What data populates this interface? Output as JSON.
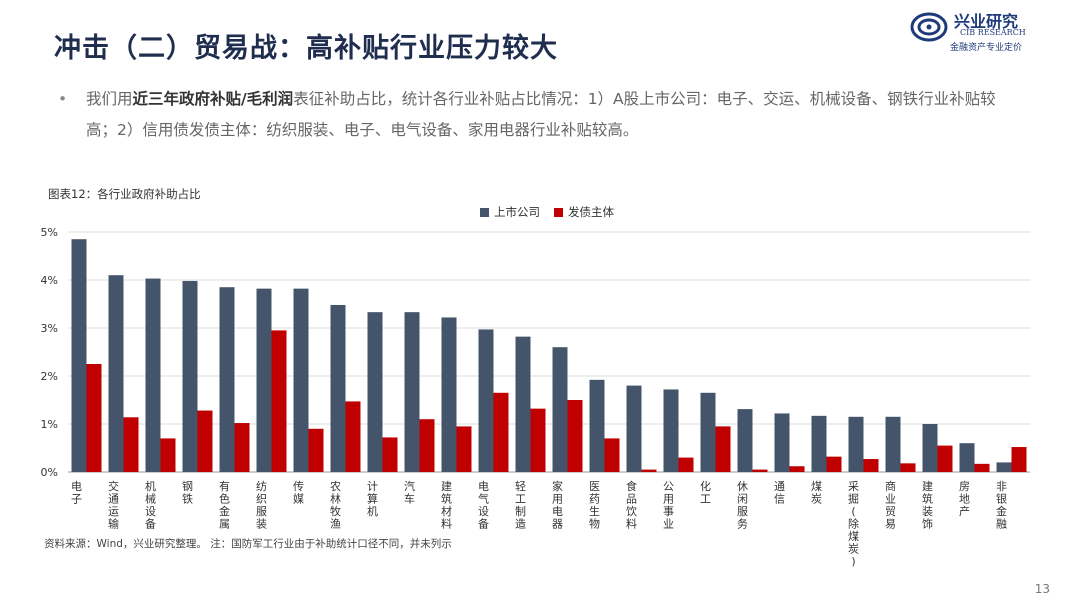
{
  "slide": {
    "title": "冲击（二）贸易战：高补贴行业压力较大",
    "bullet_dot": "•",
    "bullet_pre": "我们用",
    "bullet_bold": "近三年政府补贴/毛利润",
    "bullet_post": "表征补助占比，统计各行业补贴占比情况：1）A股上市公司：电子、交运、机械设备、钢铁行业补贴较高；2）信用债发债主体：纺织服装、电子、电气设备、家用电器行业补贴较高。",
    "chart_caption": "图表12：各行业政府补助占比",
    "footnote": "资料来源：Wind，兴业研究整理。   注：国防军工行业由于补助统计口径不同，并未列示",
    "page_number": "13"
  },
  "logo": {
    "name_cn": "兴业研究",
    "name_en": "CIB RESEARCH",
    "tagline": "金融资产专业定价"
  },
  "colors": {
    "series1": "#44546a",
    "series2": "#c00000",
    "title": "#1f2d4f"
  },
  "chart_data": {
    "type": "bar",
    "title": "",
    "ylim": [
      0,
      5
    ],
    "yticks": [
      "0%",
      "1%",
      "2%",
      "3%",
      "4%",
      "5%"
    ],
    "grid": true,
    "legend_position": "top-center",
    "categories": [
      "电子",
      "交通运输",
      "机械设备",
      "钢铁",
      "有色金属",
      "纺织服装",
      "传媒",
      "农林牧渔",
      "计算机",
      "汽车",
      "建筑材料",
      "电气设备",
      "轻工制造",
      "家用电器",
      "医药生物",
      "食品饮料",
      "公用事业",
      "化工",
      "休闲服务",
      "通信",
      "煤炭",
      "采掘(除煤炭)",
      "商业贸易",
      "建筑装饰",
      "房地产",
      "非银金融"
    ],
    "series": [
      {
        "name": "上市公司",
        "values": [
          4.85,
          4.1,
          4.03,
          3.98,
          3.85,
          3.82,
          3.82,
          3.48,
          3.33,
          3.33,
          3.22,
          2.97,
          2.82,
          2.6,
          1.92,
          1.8,
          1.72,
          1.65,
          1.31,
          1.22,
          1.17,
          1.15,
          1.15,
          1.0,
          0.6,
          0.2
        ]
      },
      {
        "name": "发债主体",
        "values": [
          2.25,
          1.14,
          0.7,
          1.28,
          1.02,
          2.95,
          0.9,
          1.47,
          0.72,
          1.1,
          0.95,
          1.65,
          1.32,
          1.5,
          0.7,
          0.05,
          0.3,
          0.95,
          0.05,
          0.12,
          0.32,
          0.27,
          0.18,
          0.55,
          0.17,
          0.52
        ]
      }
    ]
  }
}
